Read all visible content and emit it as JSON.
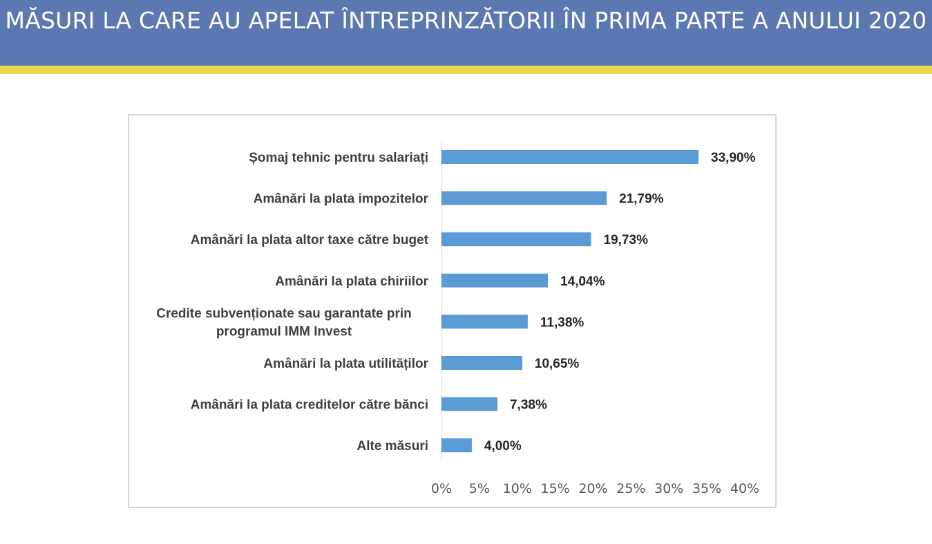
{
  "page": {
    "title": "MĂSURI LA CARE AU APELAT ÎNTREPRINZĂTORII ÎN PRIMA PARTE A ANULUI 2020"
  },
  "colors": {
    "header": "#5b78b0",
    "stripe": "#e9d84a",
    "bar": "#5b9bd5"
  },
  "chart_data": {
    "type": "bar",
    "orientation": "horizontal",
    "categories": [
      [
        "Șomaj tehnic pentru salariați"
      ],
      [
        "Amânări la plata impozitelor"
      ],
      [
        "Amânări la plata altor taxe către buget"
      ],
      [
        "Amânări la plata chiriilor"
      ],
      [
        "Credite subvenționate sau garantate prin",
        "programul IMM Invest"
      ],
      [
        "Amânări la plata utilităților"
      ],
      [
        "Amânări la plata creditelor către bănci"
      ],
      [
        "Alte măsuri"
      ]
    ],
    "values": [
      33.9,
      21.79,
      19.73,
      14.04,
      11.38,
      10.65,
      7.38,
      4.0
    ],
    "value_labels": [
      "33,90%",
      "21,79%",
      "19,73%",
      "14,04%",
      "11,38%",
      "10,65%",
      "7,38%",
      "4,00%"
    ],
    "xlim": [
      0,
      40
    ],
    "x_ticks": [
      0,
      5,
      10,
      15,
      20,
      25,
      30,
      35,
      40
    ],
    "x_tick_labels": [
      "0%",
      "5%",
      "10%",
      "15%",
      "20%",
      "25%",
      "30%",
      "35%",
      "40%"
    ],
    "grid": false,
    "legend": "none"
  }
}
